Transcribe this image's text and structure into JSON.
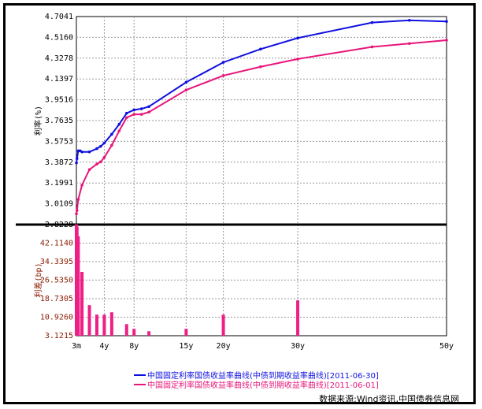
{
  "chart_data": {
    "type": "line",
    "upper": {
      "ylabel": "利率(%)",
      "y_ticks": [
        "4.7041",
        "4.5160",
        "4.3278",
        "4.1397",
        "3.9516",
        "3.7635",
        "3.5753",
        "3.3872",
        "3.1991",
        "3.0109",
        "2.8228"
      ],
      "ylim": [
        2.8228,
        4.7041
      ],
      "series": [
        {
          "name": "中国固定利率国债收益率曲线(中债到期收益率曲线)[2011-06-30]",
          "color": "#1010e0",
          "x": [
            0.25,
            0.33,
            0.5,
            0.75,
            1,
            2,
            3,
            3.5,
            4,
            5,
            6,
            7,
            8,
            9,
            10,
            15,
            20,
            25,
            30,
            40,
            45,
            50
          ],
          "y": [
            3.38,
            3.42,
            3.49,
            3.49,
            3.48,
            3.48,
            3.51,
            3.53,
            3.56,
            3.64,
            3.73,
            3.83,
            3.86,
            3.87,
            3.89,
            4.11,
            4.29,
            4.41,
            4.51,
            4.65,
            4.67,
            4.66
          ]
        },
        {
          "name": "中国固定利率国债收益率曲线(中债到期收益率曲线)[2011-06-01]",
          "color": "#e8157a",
          "x": [
            0.25,
            0.33,
            0.5,
            1,
            2,
            3,
            3.5,
            4,
            5,
            6,
            7,
            8,
            9,
            10,
            15,
            20,
            25,
            30,
            40,
            45,
            50
          ],
          "y": [
            2.92,
            2.95,
            3.05,
            3.18,
            3.32,
            3.37,
            3.39,
            3.43,
            3.54,
            3.67,
            3.79,
            3.82,
            3.82,
            3.84,
            4.04,
            4.17,
            4.25,
            4.32,
            4.43,
            4.46,
            4.49
          ]
        }
      ]
    },
    "lower": {
      "ylabel": "利差(bp)",
      "y_ticks": [
        "42.1140",
        "34.3395",
        "26.5350",
        "18.7305",
        "10.9260",
        "3.1215"
      ],
      "ylim": [
        3.1215,
        49.9
      ]
    },
    "spread_bars": {
      "x": [
        0.25,
        0.33,
        0.5,
        1,
        2,
        3,
        4,
        5,
        7,
        8,
        10,
        15,
        20,
        30
      ],
      "values": [
        50,
        49,
        45,
        30,
        16,
        12,
        12,
        13,
        8,
        6,
        5,
        6,
        12,
        18
      ]
    },
    "x_ticks": [
      {
        "label": "3m",
        "x": 0.25
      },
      {
        "label": "4y",
        "x": 4
      },
      {
        "label": "8y",
        "x": 8
      },
      {
        "label": "15y",
        "x": 15
      },
      {
        "label": "20y",
        "x": 20
      },
      {
        "label": "30y",
        "x": 30
      },
      {
        "label": "50y",
        "x": 50
      }
    ],
    "xlim": [
      0.25,
      50
    ],
    "source": "数据来源:Wind资讯,中国债券信息网"
  }
}
